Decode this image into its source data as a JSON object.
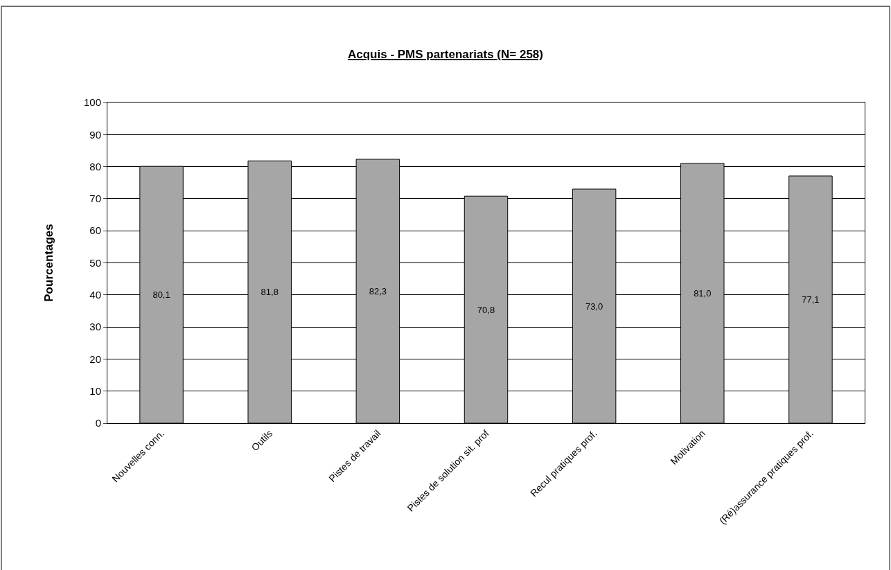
{
  "chart_data": {
    "type": "bar",
    "title": "Acquis - PMS partenariats (N= 258)",
    "ylabel": "Pourcentages",
    "categories": [
      "Nouvelles conn.",
      "Outils",
      "Pistes de travail",
      "Pistes de solution sit. prof",
      "Recul pratiques prof.",
      "Motivation",
      "(Ré)assurance pratiques prof."
    ],
    "values": [
      80.1,
      81.8,
      82.3,
      70.8,
      73.0,
      81.0,
      77.1
    ],
    "value_labels": [
      "80,1",
      "81,8",
      "82,3",
      "70,8",
      "73,0",
      "81,0",
      "77,1"
    ],
    "color": "#a6a6a6",
    "ylim": [
      0,
      100
    ],
    "yticks": [
      0,
      10,
      20,
      30,
      40,
      50,
      60,
      70,
      80,
      90,
      100
    ],
    "grid": "y",
    "legend": false
  }
}
